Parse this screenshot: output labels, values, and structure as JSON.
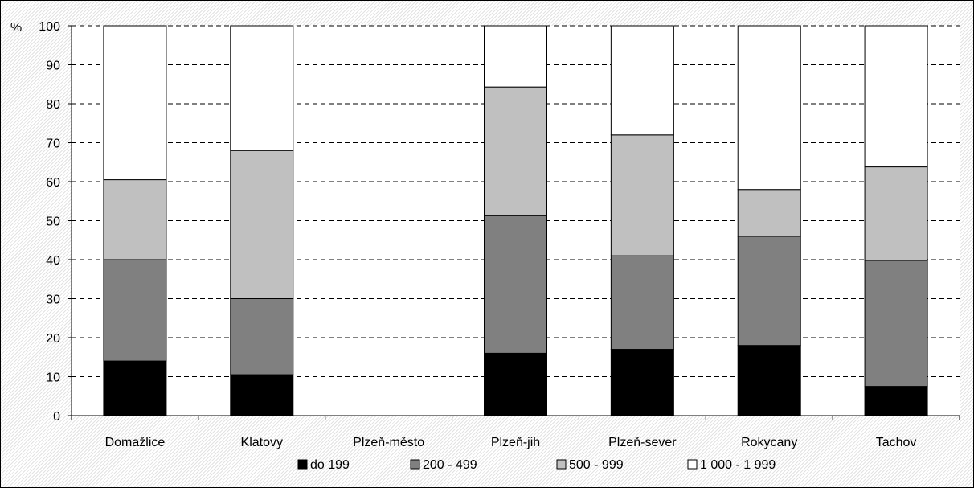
{
  "chart_data": {
    "type": "bar",
    "stacked": true,
    "y_unit_label": "%",
    "categories": [
      "Domažlice",
      "Klatovy",
      "Plzeň-město",
      "Plzeň-jih",
      "Plzeň-sever",
      "Rokycany",
      "Tachov"
    ],
    "series": [
      {
        "name": "do 199",
        "color": "#000000",
        "values": [
          14,
          10.5,
          0,
          16,
          17,
          18,
          7.5
        ]
      },
      {
        "name": "200 - 499",
        "color": "#808080",
        "values": [
          26,
          19.5,
          0,
          35.3,
          24,
          28,
          32.3
        ]
      },
      {
        "name": "500 - 999",
        "color": "#c0c0c0",
        "values": [
          20.5,
          38,
          0,
          33,
          31,
          12,
          24
        ]
      },
      {
        "name": "1 000 - 1 999",
        "color": "#ffffff",
        "values": [
          39.5,
          32,
          0,
          15.7,
          28,
          42,
          36.2
        ]
      }
    ],
    "ylim": [
      0,
      100
    ],
    "yticks": [
      0,
      10,
      20,
      30,
      40,
      50,
      60,
      70,
      80,
      90,
      100
    ],
    "grid": "dashed horizontal",
    "legend_position": "bottom"
  }
}
